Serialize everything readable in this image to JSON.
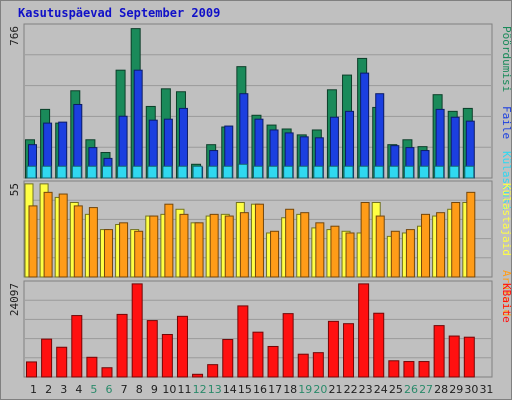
{
  "title": "Kasutuspäevad September 2009",
  "colors": {
    "visits": "#1a8a5a",
    "pages": "#1b3fe0",
    "hits": "#30d8f0",
    "unique": "#ffff44",
    "unique_alt": "#f0d020",
    "bandwidth": "#ff1010",
    "weekday_label": "#202020",
    "weekend_label": "#2a8a6a"
  },
  "chart_data": [
    {
      "type": "bar",
      "panel": "top",
      "ymax_label": "766",
      "x": [
        "1",
        "2",
        "3",
        "4",
        "5",
        "6",
        "7",
        "8",
        "9",
        "10",
        "11",
        "12",
        "13",
        "14",
        "15",
        "16",
        "17",
        "18",
        "19",
        "20",
        "21",
        "22",
        "23",
        "24",
        "25",
        "26",
        "27",
        "28",
        "29",
        "30",
        "31"
      ],
      "weekend_days": [
        "5",
        "6",
        "12",
        "13",
        "19",
        "20",
        "26",
        "27"
      ],
      "legend": [
        {
          "text": "Pöördumisi",
          "color": "#1a8a5a"
        },
        {
          "text": "Faile",
          "color": "#1b3fe0"
        },
        {
          "text": "Külastusi",
          "color": "#30d8f0"
        }
      ],
      "series": [
        {
          "name": "Pöördumisi",
          "values": [
            195,
            350,
            280,
            445,
            195,
            130,
            550,
            762,
            365,
            455,
            440,
            70,
            170,
            260,
            568,
            320,
            270,
            250,
            220,
            245,
            450,
            525,
            610,
            360,
            170,
            195,
            160,
            425,
            340,
            355,
            0
          ]
        },
        {
          "name": "Faile",
          "values": [
            170,
            280,
            285,
            375,
            155,
            100,
            315,
            550,
            295,
            300,
            355,
            55,
            140,
            265,
            430,
            300,
            245,
            230,
            210,
            205,
            310,
            340,
            535,
            430,
            165,
            155,
            140,
            350,
            310,
            290,
            0
          ]
        },
        {
          "name": "Külastusi",
          "values": [
            60,
            60,
            60,
            60,
            60,
            60,
            60,
            60,
            60,
            60,
            60,
            60,
            60,
            60,
            70,
            60,
            60,
            60,
            60,
            60,
            60,
            60,
            60,
            60,
            60,
            60,
            60,
            60,
            60,
            60,
            0
          ]
        }
      ]
    },
    {
      "type": "bar",
      "panel": "middle",
      "ymax_label": "55",
      "x": [
        "1",
        "2",
        "3",
        "4",
        "5",
        "6",
        "7",
        "8",
        "9",
        "10",
        "11",
        "12",
        "13",
        "14",
        "15",
        "16",
        "17",
        "18",
        "19",
        "20",
        "21",
        "22",
        "23",
        "24",
        "25",
        "26",
        "27",
        "28",
        "29",
        "30",
        "31"
      ],
      "legend": [
        {
          "text": "Külastajaid",
          "color": "#ffff44"
        },
        {
          "text": "Aruteid",
          "color": "#ff9c18"
        }
      ],
      "series": [
        {
          "name": "Külastajaid",
          "values": [
            55,
            55,
            47,
            44,
            37,
            28,
            31,
            28,
            36,
            37,
            40,
            32,
            36,
            37,
            44,
            43,
            26,
            35,
            37,
            29,
            28,
            27,
            26,
            44,
            24,
            26,
            30,
            36,
            40,
            44,
            0
          ]
        },
        {
          "name": "Aruteid",
          "values": [
            42,
            50,
            49,
            42,
            41,
            28,
            32,
            27,
            36,
            43,
            37,
            32,
            37,
            36,
            38,
            43,
            27,
            40,
            38,
            32,
            30,
            26,
            44,
            36,
            27,
            28,
            37,
            38,
            44,
            50,
            0
          ]
        }
      ]
    },
    {
      "type": "bar",
      "panel": "bottom",
      "ymax_label": "24097",
      "x": [
        "1",
        "2",
        "3",
        "4",
        "5",
        "6",
        "7",
        "8",
        "9",
        "10",
        "11",
        "12",
        "13",
        "14",
        "15",
        "16",
        "17",
        "18",
        "19",
        "20",
        "21",
        "22",
        "23",
        "24",
        "25",
        "26",
        "27",
        "28",
        "29",
        "30",
        "31"
      ],
      "legend": [
        {
          "text": "KBaite",
          "color": "#ff1010"
        }
      ],
      "series": [
        {
          "name": "KBaite",
          "values": [
            3900,
            9800,
            7700,
            15900,
            5100,
            2400,
            16200,
            24097,
            14600,
            11000,
            15700,
            700,
            3200,
            9700,
            18400,
            11600,
            7900,
            16400,
            5900,
            6300,
            14400,
            13800,
            24097,
            16500,
            4200,
            4000,
            4000,
            13300,
            10600,
            10300,
            0
          ]
        }
      ]
    }
  ]
}
